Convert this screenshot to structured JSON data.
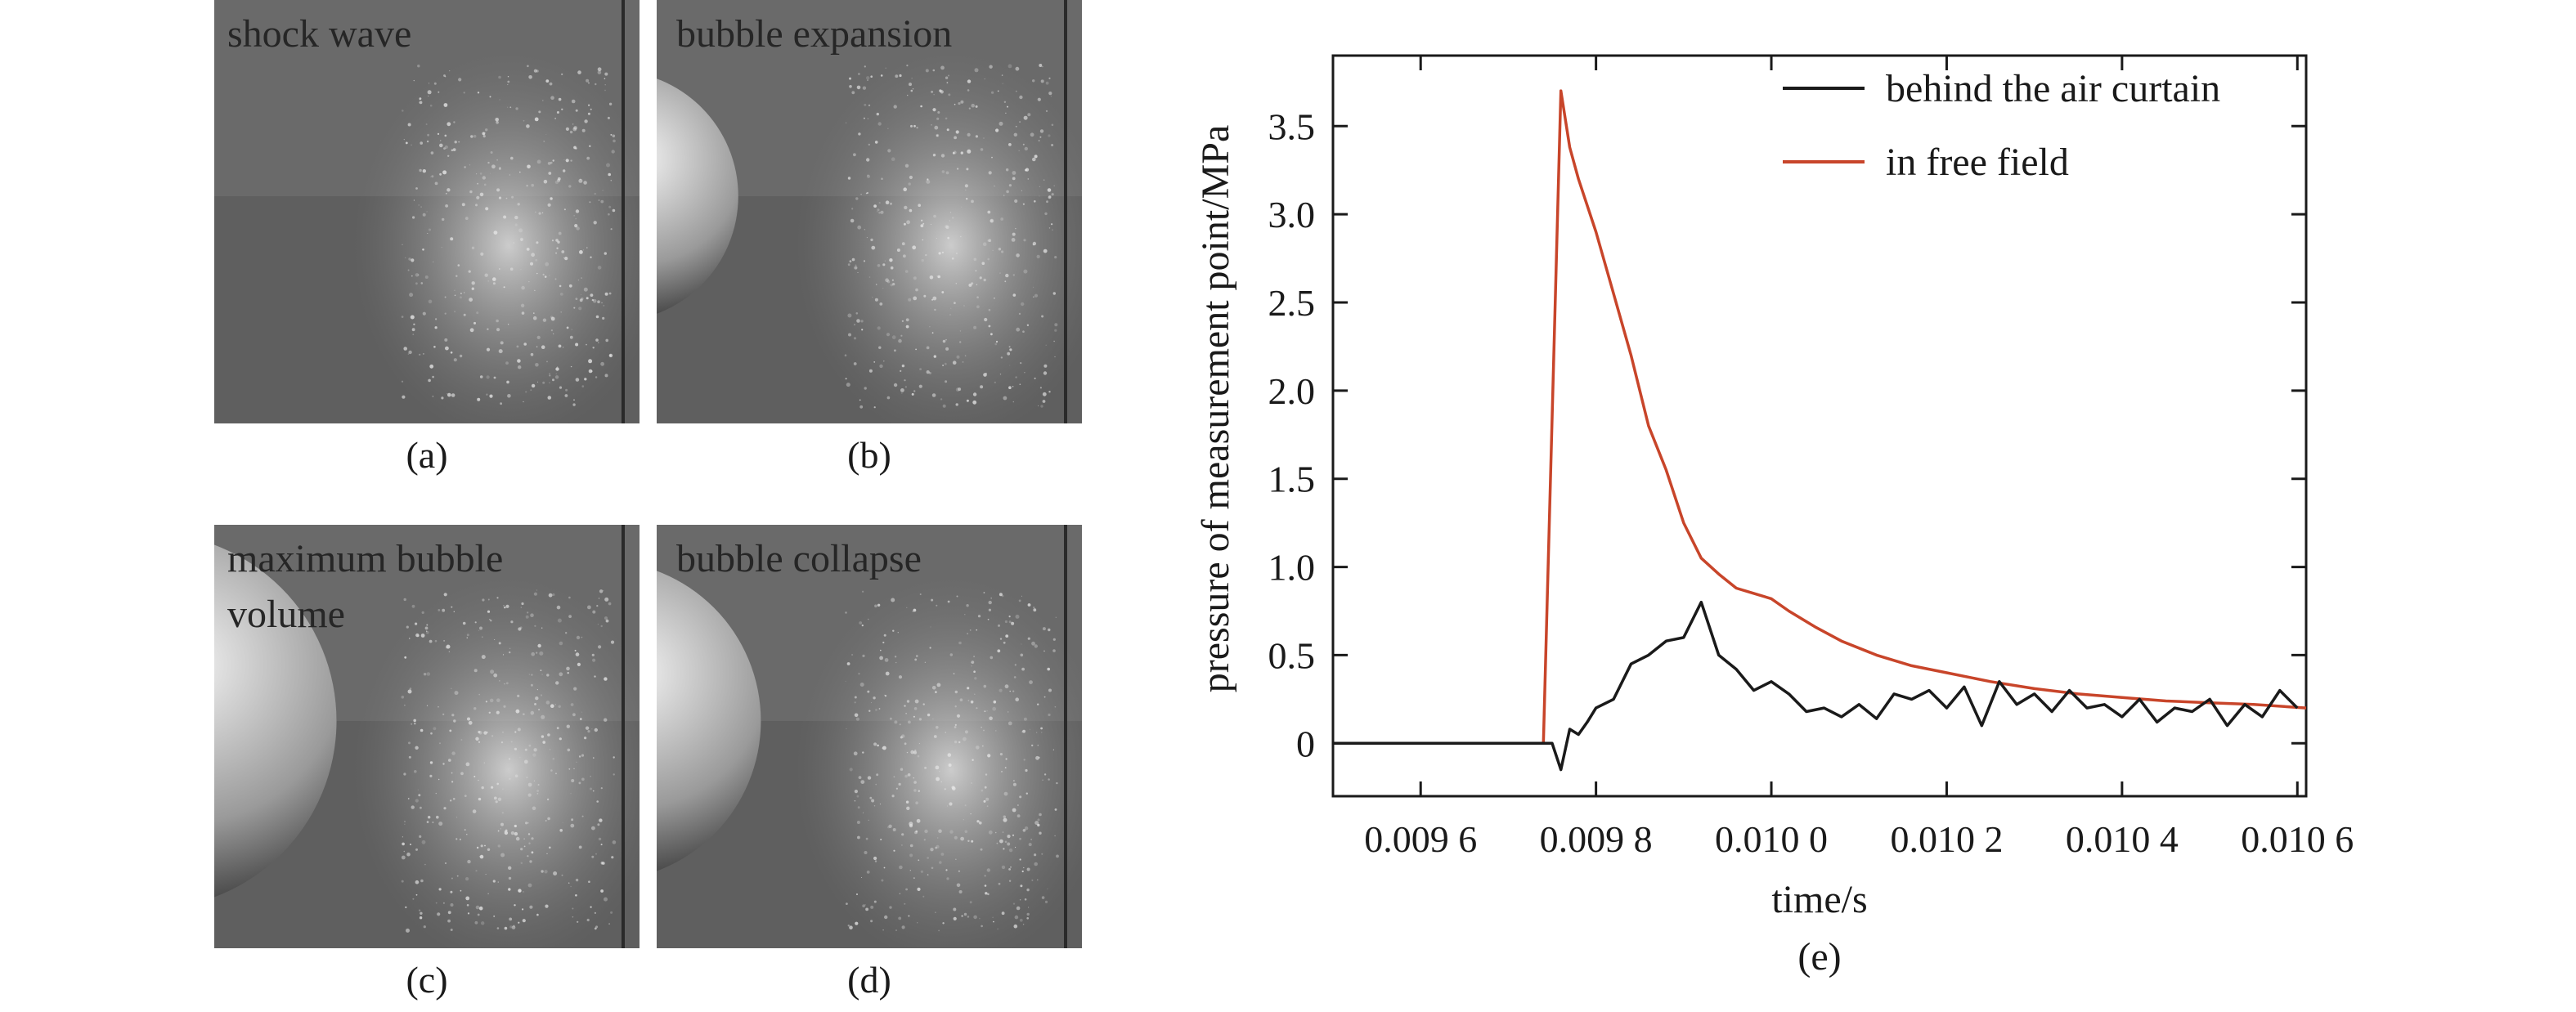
{
  "photos": [
    {
      "caption": "shock wave",
      "label": "(a)",
      "bubble": 0
    },
    {
      "caption": "bubble expansion",
      "label": "(b)",
      "bubble": 0.55
    },
    {
      "caption": "maximum bubble\nvolume",
      "label": "(c)",
      "bubble": 1.0
    },
    {
      "caption": "bubble collapse",
      "label": "(d)",
      "bubble": 0.8
    }
  ],
  "chart_panel_label": "(e)",
  "chart_data": {
    "type": "line",
    "xlabel": "time/s",
    "ylabel": "pressure of measurement point/MPa",
    "xlim": [
      0.0095,
      0.01061
    ],
    "ylim": [
      -0.3,
      3.9
    ],
    "x_ticks": [
      0.0096,
      0.0098,
      0.01,
      0.0102,
      0.0104,
      0.0106
    ],
    "x_tick_labels": [
      "0.009 6",
      "0.009 8",
      "0.010 0",
      "0.010 2",
      "0.010 4",
      "0.010 6"
    ],
    "y_ticks": [
      0,
      0.5,
      1.0,
      1.5,
      2.0,
      2.5,
      3.0,
      3.5
    ],
    "y_tick_labels": [
      "0",
      "0.5",
      "1.0",
      "1.5",
      "2.0",
      "2.5",
      "3.0",
      "3.5"
    ],
    "legend_position": "top-right",
    "series": [
      {
        "name": "behind the air curtain",
        "color": "#1a1a1a",
        "x": [
          0.0095,
          0.00975,
          0.00976,
          0.00977,
          0.00978,
          0.00979,
          0.0098,
          0.00982,
          0.00984,
          0.00986,
          0.00988,
          0.0099,
          0.00992,
          0.00994,
          0.00996,
          0.00998,
          0.01,
          0.01002,
          0.01004,
          0.01006,
          0.01008,
          0.0101,
          0.01012,
          0.01014,
          0.01016,
          0.01018,
          0.0102,
          0.01022,
          0.01024,
          0.01026,
          0.01028,
          0.0103,
          0.01032,
          0.01034,
          0.01036,
          0.01038,
          0.0104,
          0.01042,
          0.01044,
          0.01046,
          0.01048,
          0.0105,
          0.01052,
          0.01054,
          0.01056,
          0.01058,
          0.0106
        ],
        "y": [
          0,
          0,
          -0.15,
          0.08,
          0.05,
          0.12,
          0.2,
          0.25,
          0.45,
          0.5,
          0.58,
          0.6,
          0.8,
          0.5,
          0.42,
          0.3,
          0.35,
          0.28,
          0.18,
          0.2,
          0.15,
          0.22,
          0.14,
          0.28,
          0.25,
          0.3,
          0.2,
          0.32,
          0.1,
          0.35,
          0.22,
          0.28,
          0.18,
          0.3,
          0.2,
          0.22,
          0.15,
          0.25,
          0.12,
          0.2,
          0.18,
          0.25,
          0.1,
          0.22,
          0.15,
          0.3,
          0.2
        ]
      },
      {
        "name": "in free field",
        "color": "#c8452a",
        "x": [
          0.0095,
          0.00974,
          0.00976,
          0.00977,
          0.00978,
          0.0098,
          0.00982,
          0.00984,
          0.00986,
          0.00988,
          0.0099,
          0.00992,
          0.00994,
          0.00996,
          0.00998,
          0.01,
          0.01002,
          0.01005,
          0.01008,
          0.01012,
          0.01016,
          0.0102,
          0.01025,
          0.0103,
          0.01035,
          0.0104,
          0.01045,
          0.0105,
          0.01055,
          0.01061
        ],
        "y": [
          0,
          0,
          3.7,
          3.38,
          3.2,
          2.9,
          2.55,
          2.2,
          1.8,
          1.55,
          1.25,
          1.05,
          0.96,
          0.88,
          0.85,
          0.82,
          0.75,
          0.66,
          0.58,
          0.5,
          0.44,
          0.4,
          0.35,
          0.31,
          0.28,
          0.26,
          0.24,
          0.23,
          0.22,
          0.2
        ]
      }
    ]
  }
}
